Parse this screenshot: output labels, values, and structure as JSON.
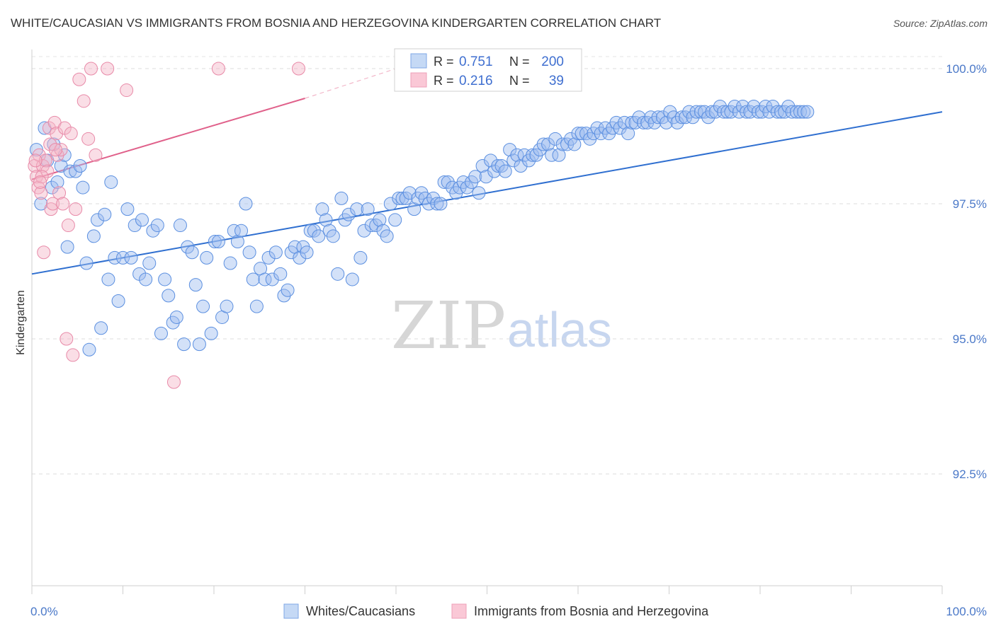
{
  "header": {
    "title": "WHITE/CAUCASIAN VS IMMIGRANTS FROM BOSNIA AND HERZEGOVINA KINDERGARTEN CORRELATION CHART",
    "source": "Source: ZipAtlas.com"
  },
  "watermark": {
    "zip": "ZIP",
    "atlas": "atlas"
  },
  "legend_box": {
    "rows": [
      {
        "r_label": "R = ",
        "r_value": "0.751",
        "n_label": "N = ",
        "n_value": "200",
        "color": "#9dbdf0"
      },
      {
        "r_label": "R = ",
        "r_value": "0.216",
        "n_label": "N = ",
        "n_value": "39",
        "color": "#f5b5c8"
      }
    ]
  },
  "bottom_legend": [
    {
      "label": "Whites/Caucasians",
      "color": "#9dbdf0"
    },
    {
      "label": "Immigrants from Bosnia and Herzegovina",
      "color": "#f5b5c8"
    }
  ],
  "chart_data": {
    "type": "scatter",
    "title": "WHITE/CAUCASIAN VS IMMIGRANTS FROM BOSNIA AND HERZEGOVINA KINDERGARTEN CORRELATION CHART",
    "xlabel": "",
    "ylabel": "Kindergarten",
    "xlim": [
      0,
      100
    ],
    "ylim": [
      90,
      100.4
    ],
    "x_tick_labels": [
      "0.0%",
      "100.0%"
    ],
    "y_ticks": [
      92.5,
      95.0,
      97.5,
      100.0
    ],
    "y_tick_labels": [
      "92.5%",
      "95.0%",
      "97.5%",
      "100.0%"
    ],
    "grid": true,
    "legend_position": "top-center",
    "series": [
      {
        "name": "Whites/Caucasians",
        "color": "#9dbdf0",
        "stroke": "#5b8fe0",
        "trend": {
          "x": [
            0,
            100
          ],
          "y": [
            96.2,
            99.2
          ],
          "color": "#2f6fd0",
          "dashed_extension": false
        },
        "points": [
          [
            0.5,
            98.5
          ],
          [
            1.0,
            97.5
          ],
          [
            1.4,
            98.9
          ],
          [
            1.7,
            98.3
          ],
          [
            2.2,
            97.8
          ],
          [
            2.4,
            98.6
          ],
          [
            2.8,
            97.9
          ],
          [
            3.2,
            98.2
          ],
          [
            3.6,
            98.4
          ],
          [
            3.9,
            96.7
          ],
          [
            4.2,
            98.1
          ],
          [
            4.8,
            98.1
          ],
          [
            5.3,
            98.2
          ],
          [
            5.6,
            97.8
          ],
          [
            6.0,
            96.4
          ],
          [
            6.3,
            94.8
          ],
          [
            6.8,
            96.9
          ],
          [
            7.2,
            97.2
          ],
          [
            7.6,
            95.2
          ],
          [
            8.0,
            97.3
          ],
          [
            8.4,
            96.1
          ],
          [
            8.7,
            97.9
          ],
          [
            9.1,
            96.5
          ],
          [
            9.5,
            95.7
          ],
          [
            10.0,
            96.5
          ],
          [
            10.5,
            97.4
          ],
          [
            10.9,
            96.5
          ],
          [
            11.3,
            97.1
          ],
          [
            11.8,
            96.2
          ],
          [
            12.1,
            97.2
          ],
          [
            12.5,
            96.1
          ],
          [
            12.9,
            96.4
          ],
          [
            13.3,
            97.0
          ],
          [
            13.8,
            97.1
          ],
          [
            14.2,
            95.1
          ],
          [
            14.6,
            96.1
          ],
          [
            15.0,
            95.8
          ],
          [
            15.5,
            95.3
          ],
          [
            15.9,
            95.4
          ],
          [
            16.3,
            97.1
          ],
          [
            16.7,
            94.9
          ],
          [
            17.1,
            96.7
          ],
          [
            17.6,
            96.6
          ],
          [
            18.0,
            96.0
          ],
          [
            18.4,
            94.9
          ],
          [
            18.8,
            95.6
          ],
          [
            19.2,
            96.5
          ],
          [
            19.7,
            95.1
          ],
          [
            20.1,
            96.8
          ],
          [
            20.5,
            96.8
          ],
          [
            20.9,
            95.4
          ],
          [
            21.4,
            95.6
          ],
          [
            21.8,
            96.4
          ],
          [
            22.2,
            97.0
          ],
          [
            22.6,
            96.8
          ],
          [
            23.0,
            97.0
          ],
          [
            23.5,
            97.5
          ],
          [
            23.9,
            96.6
          ],
          [
            24.3,
            96.1
          ],
          [
            24.7,
            95.6
          ],
          [
            25.1,
            96.3
          ],
          [
            25.6,
            96.1
          ],
          [
            26.0,
            96.5
          ],
          [
            26.4,
            96.1
          ],
          [
            26.8,
            96.6
          ],
          [
            27.3,
            96.2
          ],
          [
            27.7,
            95.8
          ],
          [
            28.1,
            95.9
          ],
          [
            28.5,
            96.6
          ],
          [
            28.9,
            96.7
          ],
          [
            29.4,
            96.5
          ],
          [
            29.8,
            96.7
          ],
          [
            30.2,
            96.6
          ],
          [
            30.6,
            97.0
          ],
          [
            31.0,
            97.0
          ],
          [
            31.5,
            96.9
          ],
          [
            31.9,
            97.4
          ],
          [
            32.3,
            97.2
          ],
          [
            32.7,
            97.0
          ],
          [
            33.1,
            96.9
          ],
          [
            33.6,
            96.2
          ],
          [
            34.0,
            97.6
          ],
          [
            34.4,
            97.2
          ],
          [
            34.8,
            97.3
          ],
          [
            35.2,
            96.1
          ],
          [
            35.7,
            97.4
          ],
          [
            36.1,
            96.5
          ],
          [
            36.5,
            97.0
          ],
          [
            36.9,
            97.4
          ],
          [
            37.3,
            97.1
          ],
          [
            37.8,
            97.1
          ],
          [
            38.2,
            97.2
          ],
          [
            38.6,
            97.0
          ],
          [
            39.0,
            96.9
          ],
          [
            39.4,
            97.5
          ],
          [
            39.9,
            97.2
          ],
          [
            40.3,
            97.6
          ],
          [
            40.7,
            97.6
          ],
          [
            41.1,
            97.6
          ],
          [
            41.5,
            97.7
          ],
          [
            42.0,
            97.4
          ],
          [
            42.4,
            97.6
          ],
          [
            42.8,
            97.7
          ],
          [
            43.2,
            97.6
          ],
          [
            43.6,
            97.5
          ],
          [
            44.1,
            97.6
          ],
          [
            44.5,
            97.5
          ],
          [
            44.9,
            97.5
          ],
          [
            45.3,
            97.9
          ],
          [
            45.7,
            97.9
          ],
          [
            46.2,
            97.8
          ],
          [
            46.6,
            97.7
          ],
          [
            47.0,
            97.8
          ],
          [
            47.4,
            97.9
          ],
          [
            47.8,
            97.8
          ],
          [
            48.3,
            97.9
          ],
          [
            48.7,
            98.0
          ],
          [
            49.1,
            97.7
          ],
          [
            49.5,
            98.2
          ],
          [
            49.9,
            98.0
          ],
          [
            50.4,
            98.3
          ],
          [
            50.8,
            98.1
          ],
          [
            51.2,
            98.2
          ],
          [
            51.6,
            98.2
          ],
          [
            52.0,
            98.1
          ],
          [
            52.5,
            98.5
          ],
          [
            52.9,
            98.3
          ],
          [
            53.3,
            98.4
          ],
          [
            53.7,
            98.2
          ],
          [
            54.1,
            98.4
          ],
          [
            54.6,
            98.3
          ],
          [
            55.0,
            98.4
          ],
          [
            55.4,
            98.4
          ],
          [
            55.8,
            98.5
          ],
          [
            56.2,
            98.6
          ],
          [
            56.7,
            98.6
          ],
          [
            57.1,
            98.4
          ],
          [
            57.5,
            98.7
          ],
          [
            57.9,
            98.4
          ],
          [
            58.3,
            98.6
          ],
          [
            58.8,
            98.6
          ],
          [
            59.2,
            98.7
          ],
          [
            59.6,
            98.6
          ],
          [
            60.0,
            98.8
          ],
          [
            60.4,
            98.8
          ],
          [
            60.9,
            98.8
          ],
          [
            61.3,
            98.7
          ],
          [
            61.7,
            98.8
          ],
          [
            62.1,
            98.9
          ],
          [
            62.5,
            98.8
          ],
          [
            63.0,
            98.9
          ],
          [
            63.4,
            98.8
          ],
          [
            63.8,
            98.9
          ],
          [
            64.2,
            99.0
          ],
          [
            64.6,
            98.9
          ],
          [
            65.1,
            99.0
          ],
          [
            65.5,
            98.8
          ],
          [
            65.9,
            99.0
          ],
          [
            66.3,
            99.0
          ],
          [
            66.7,
            99.1
          ],
          [
            67.2,
            99.0
          ],
          [
            67.6,
            99.0
          ],
          [
            68.0,
            99.1
          ],
          [
            68.4,
            99.0
          ],
          [
            68.8,
            99.1
          ],
          [
            69.3,
            99.1
          ],
          [
            69.7,
            99.0
          ],
          [
            70.1,
            99.2
          ],
          [
            70.5,
            99.1
          ],
          [
            70.9,
            99.0
          ],
          [
            71.4,
            99.1
          ],
          [
            71.8,
            99.1
          ],
          [
            72.2,
            99.2
          ],
          [
            72.6,
            99.1
          ],
          [
            73.0,
            99.2
          ],
          [
            73.5,
            99.2
          ],
          [
            73.9,
            99.2
          ],
          [
            74.3,
            99.1
          ],
          [
            74.7,
            99.2
          ],
          [
            75.1,
            99.2
          ],
          [
            75.6,
            99.3
          ],
          [
            76.0,
            99.2
          ],
          [
            76.4,
            99.2
          ],
          [
            76.8,
            99.2
          ],
          [
            77.2,
            99.3
          ],
          [
            77.7,
            99.2
          ],
          [
            78.1,
            99.3
          ],
          [
            78.5,
            99.2
          ],
          [
            78.9,
            99.2
          ],
          [
            79.3,
            99.3
          ],
          [
            79.8,
            99.2
          ],
          [
            80.2,
            99.2
          ],
          [
            80.6,
            99.3
          ],
          [
            81.0,
            99.2
          ],
          [
            81.4,
            99.3
          ],
          [
            81.9,
            99.2
          ],
          [
            82.3,
            99.2
          ],
          [
            82.7,
            99.2
          ],
          [
            83.1,
            99.3
          ],
          [
            83.5,
            99.2
          ],
          [
            84.0,
            99.2
          ],
          [
            84.4,
            99.2
          ],
          [
            84.8,
            99.2
          ],
          [
            85.2,
            99.2
          ]
        ]
      },
      {
        "name": "Immigrants from Bosnia and Herzegovina",
        "color": "#f5b5c8",
        "stroke": "#e88aa8",
        "trend": {
          "x": [
            0,
            30
          ],
          "y": [
            97.95,
            99.45
          ],
          "color": "#e0608a",
          "dashed_extension": true,
          "dash_x": [
            30,
            40
          ],
          "dash_y": [
            99.45,
            100.0
          ]
        },
        "points": [
          [
            0.3,
            98.2
          ],
          [
            0.5,
            98.0
          ],
          [
            0.7,
            97.8
          ],
          [
            0.8,
            98.4
          ],
          [
            1.0,
            97.7
          ],
          [
            1.2,
            98.2
          ],
          [
            1.3,
            96.6
          ],
          [
            1.5,
            98.3
          ],
          [
            1.7,
            98.1
          ],
          [
            1.9,
            98.9
          ],
          [
            2.0,
            98.6
          ],
          [
            2.1,
            97.4
          ],
          [
            2.3,
            97.5
          ],
          [
            2.5,
            99.0
          ],
          [
            2.7,
            98.8
          ],
          [
            2.8,
            98.4
          ],
          [
            3.0,
            97.7
          ],
          [
            3.2,
            98.5
          ],
          [
            3.4,
            97.5
          ],
          [
            3.6,
            98.9
          ],
          [
            3.8,
            95.0
          ],
          [
            4.0,
            97.1
          ],
          [
            4.3,
            98.8
          ],
          [
            4.5,
            94.7
          ],
          [
            4.8,
            97.4
          ],
          [
            5.2,
            99.8
          ],
          [
            5.7,
            99.4
          ],
          [
            6.2,
            98.7
          ],
          [
            6.5,
            100.0
          ],
          [
            7.0,
            98.4
          ],
          [
            8.3,
            100.0
          ],
          [
            10.4,
            99.6
          ],
          [
            15.6,
            94.2
          ],
          [
            20.5,
            100.0
          ],
          [
            29.3,
            100.0
          ],
          [
            0.4,
            98.3
          ],
          [
            1.1,
            98.0
          ],
          [
            2.6,
            98.5
          ],
          [
            0.9,
            97.9
          ]
        ]
      }
    ]
  }
}
